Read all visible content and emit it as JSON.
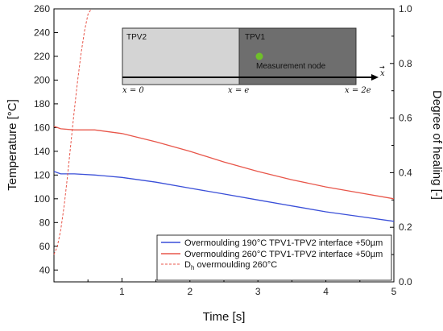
{
  "chart_data": {
    "type": "line",
    "xlabel": "Time [s]",
    "ylabel": "Temperature [°C]",
    "y2label": "Degree of healing [-]",
    "xlim": [
      0,
      5
    ],
    "ylim": [
      30,
      260
    ],
    "y2lim": [
      0.0,
      1.0
    ],
    "xticks": [
      "1",
      "2",
      "3",
      "4",
      "5"
    ],
    "yticks": [
      "40",
      "60",
      "80",
      "100",
      "120",
      "140",
      "160",
      "180",
      "200",
      "220",
      "240",
      "260"
    ],
    "y2ticks": [
      "0.0",
      "0.2",
      "0.4",
      "0.6",
      "0.8",
      "1.0"
    ],
    "series": [
      {
        "name": "Overmoulding 190°C TPV1-TPV2 interface +50µm",
        "axis": "left",
        "color": "#3a4fd8",
        "dash": "solid",
        "x": [
          0,
          0.1,
          0.3,
          0.6,
          1.0,
          1.5,
          2.0,
          2.5,
          3.0,
          3.5,
          4.0,
          4.5,
          5.0
        ],
        "y": [
          123,
          121,
          121,
          120,
          118,
          114,
          109,
          104,
          99,
          94,
          89,
          85,
          81
        ]
      },
      {
        "name": "Overmoulding 260°C TPV1-TPV2 interface +50µm",
        "axis": "left",
        "color": "#e8564a",
        "dash": "solid",
        "x": [
          0,
          0.1,
          0.3,
          0.6,
          1.0,
          1.5,
          2.0,
          2.5,
          3.0,
          3.5,
          4.0,
          4.5,
          5.0
        ],
        "y": [
          161,
          159,
          158,
          158,
          155,
          148,
          140,
          131,
          123,
          116,
          110,
          105,
          100
        ]
      },
      {
        "name": "Dh overmoulding 260°C",
        "axis": "right",
        "color": "#e8564a",
        "dash": "dashed",
        "x": [
          0.0,
          0.05,
          0.1,
          0.15,
          0.2,
          0.25,
          0.3,
          0.35,
          0.4,
          0.45,
          0.5,
          0.55
        ],
        "y": [
          0.1,
          0.13,
          0.19,
          0.28,
          0.39,
          0.51,
          0.63,
          0.74,
          0.84,
          0.92,
          0.98,
          1.0
        ]
      }
    ],
    "legend": {
      "placement": "bottom-right",
      "entries": [
        {
          "label": "Overmoulding 190°C TPV1-TPV2 interface +50µm"
        },
        {
          "label": "Overmoulding 260°C TPV1-TPV2 interface +50µm"
        },
        {
          "label_main": "D",
          "label_sub": "h",
          "label_rest": " overmoulding 260°C"
        }
      ]
    },
    "inset": {
      "tpv2_label": "TPV2",
      "tpv1_label": "TPV1",
      "node_label": "Measurement node",
      "x0_label": "x = 0",
      "xe_label": "x = e",
      "x2e_label": "x = 2e",
      "axis_label": "x",
      "tpv2_color": "#d4d4d4",
      "tpv1_color": "#6e6e6e",
      "node_color": "#6fbf2a"
    }
  }
}
